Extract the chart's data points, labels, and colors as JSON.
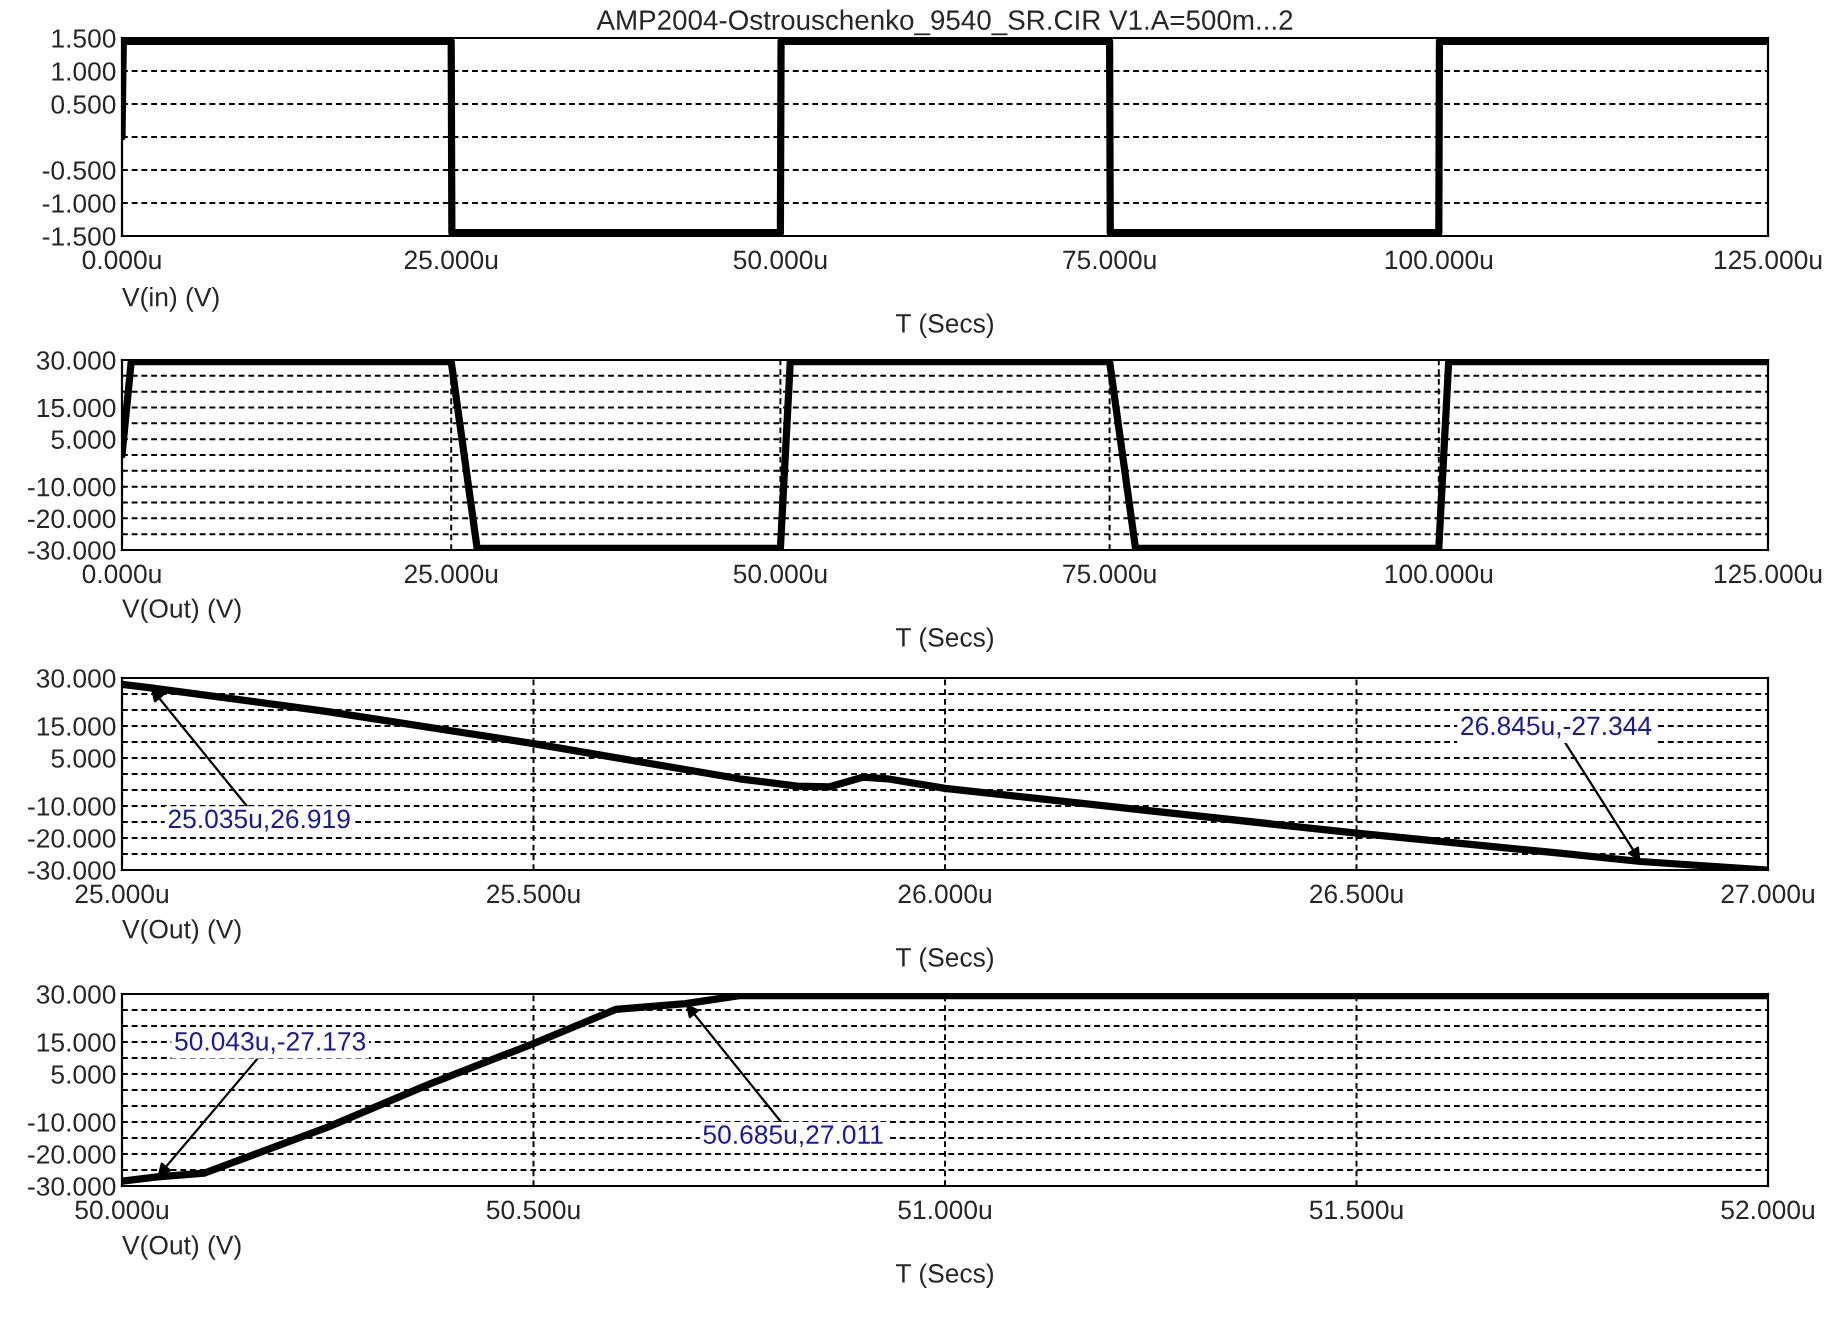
{
  "chart_data": [
    {
      "type": "line",
      "title": "AMP2004-Ostrouschenko_9540_SR.CIR V1.A=500m...2",
      "xlabel": "T (Secs)",
      "annotations": [
        "V(in) (V)"
      ],
      "grid": true,
      "series": [
        {
          "color": "#000000",
          "x": [
            0,
            0.1,
            25,
            25.05,
            50,
            50.05,
            75,
            75.05,
            100,
            100.05,
            125
          ],
          "values": [
            0,
            1.45,
            1.45,
            -1.45,
            -1.45,
            1.45,
            1.45,
            -1.45,
            -1.45,
            1.45,
            1.45
          ]
        }
      ],
      "xlim": [
        0,
        125
      ],
      "xticks": [
        {
          "value": 0,
          "label": "0.000u"
        },
        {
          "value": 25,
          "label": "25.000u"
        },
        {
          "value": 50,
          "label": "50.000u"
        },
        {
          "value": 75,
          "label": "75.000u"
        },
        {
          "value": 100,
          "label": "100.000u"
        },
        {
          "value": 125,
          "label": "125.000u"
        }
      ],
      "ylim": [
        -1.5,
        1.5
      ],
      "yticks": [
        {
          "value": -1.5,
          "label": "-1.500"
        },
        {
          "value": -1,
          "label": "-1.000"
        },
        {
          "value": -0.5,
          "label": "-0.500"
        },
        {
          "value": 0,
          "label": null
        },
        {
          "value": 0.5,
          "label": "0.500"
        },
        {
          "value": 1,
          "label": "1.000"
        },
        {
          "value": 1.5,
          "label": "1.500"
        }
      ]
    },
    {
      "type": "line",
      "xlabel": "T (Secs)",
      "annotations": [
        "V(Out) (V)"
      ],
      "grid": true,
      "series": [
        {
          "color": "#000000",
          "x": [
            0,
            0.7,
            25,
            26.97,
            50,
            50.75,
            75,
            76.97,
            100,
            100.75,
            125
          ],
          "values": [
            0,
            29.5,
            29.5,
            -29.5,
            -29.5,
            29.5,
            29.5,
            -29.5,
            -29.5,
            29.5,
            29.5
          ]
        }
      ],
      "xlim": [
        0,
        125
      ],
      "xticks": [
        {
          "value": 0,
          "label": "0.000u"
        },
        {
          "value": 25,
          "label": "25.000u"
        },
        {
          "value": 50,
          "label": "50.000u"
        },
        {
          "value": 75,
          "label": "75.000u"
        },
        {
          "value": 100,
          "label": "100.000u"
        },
        {
          "value": 125,
          "label": "125.000u"
        }
      ],
      "ylim": [
        -30,
        30
      ],
      "yticks": [
        {
          "value": -30,
          "label": "-30.000"
        },
        {
          "value": -25,
          "label": null
        },
        {
          "value": -20,
          "label": "-20.000"
        },
        {
          "value": -15,
          "label": null
        },
        {
          "value": -10,
          "label": "-10.000"
        },
        {
          "value": -5,
          "label": null
        },
        {
          "value": 0,
          "label": null
        },
        {
          "value": 5,
          "label": "5.000"
        },
        {
          "value": 10,
          "label": null
        },
        {
          "value": 15,
          "label": "15.000"
        },
        {
          "value": 20,
          "label": null
        },
        {
          "value": 25,
          "label": null
        },
        {
          "value": 30,
          "label": "30.000"
        }
      ]
    },
    {
      "type": "line",
      "xlabel": "T (Secs)",
      "grid": true,
      "series": [
        {
          "color": "#000000",
          "x": [
            25.0,
            25.035,
            25.25,
            25.5,
            25.75,
            25.82,
            25.86,
            25.9,
            25.93,
            26.0,
            26.25,
            26.5,
            26.75,
            26.845,
            27.0
          ],
          "values": [
            28,
            26.919,
            19.5,
            9.5,
            -1.5,
            -3.8,
            -4,
            -1,
            -1.5,
            -4.5,
            -11.5,
            -18.5,
            -24.8,
            -27.344,
            -30
          ]
        }
      ],
      "xlim": [
        25,
        27
      ],
      "xticks": [
        {
          "value": 25,
          "label": "25.000u"
        },
        {
          "value": 25.5,
          "label": "25.500u"
        },
        {
          "value": 26,
          "label": "26.000u"
        },
        {
          "value": 26.5,
          "label": "26.500u"
        },
        {
          "value": 27,
          "label": "27.000u"
        }
      ],
      "ylim": [
        -30,
        30
      ],
      "yticks": [
        {
          "value": -30,
          "label": "-30.000"
        },
        {
          "value": -25,
          "label": null
        },
        {
          "value": -20,
          "label": "-20.000"
        },
        {
          "value": -15,
          "label": null
        },
        {
          "value": -10,
          "label": "-10.000"
        },
        {
          "value": -5,
          "label": null
        },
        {
          "value": 0,
          "label": null
        },
        {
          "value": 5,
          "label": "5.000"
        },
        {
          "value": 10,
          "label": null
        },
        {
          "value": 15,
          "label": "15.000"
        },
        {
          "value": 20,
          "label": null
        },
        {
          "value": 25,
          "label": null
        },
        {
          "value": 30,
          "label": "30.000"
        }
      ],
      "annotations": [
        "V(Out) (V)",
        {
          "text": "25.035u,26.919",
          "x": 25.035,
          "y": 26.919
        },
        {
          "text": "26.845u,-27.344",
          "x": 26.845,
          "y": -27.344
        }
      ]
    },
    {
      "type": "line",
      "xlabel": "T (Secs)",
      "grid": true,
      "series": [
        {
          "color": "#000000",
          "x": [
            50.0,
            50.043,
            50.1,
            50.25,
            50.375,
            50.5,
            50.6,
            50.685,
            50.75,
            52.0
          ],
          "values": [
            -28.5,
            -27.173,
            -26,
            -11.6,
            2,
            14.5,
            25.2,
            27.011,
            29.5,
            29.5
          ]
        }
      ],
      "xlim": [
        50,
        52
      ],
      "xticks": [
        {
          "value": 50,
          "label": "50.000u"
        },
        {
          "value": 50.5,
          "label": "50.500u"
        },
        {
          "value": 51,
          "label": "51.000u"
        },
        {
          "value": 51.5,
          "label": "51.500u"
        },
        {
          "value": 52,
          "label": "52.000u"
        }
      ],
      "ylim": [
        -30,
        30
      ],
      "yticks": [
        {
          "value": -30,
          "label": "-30.000"
        },
        {
          "value": -25,
          "label": null
        },
        {
          "value": -20,
          "label": "-20.000"
        },
        {
          "value": -15,
          "label": null
        },
        {
          "value": -10,
          "label": "-10.000"
        },
        {
          "value": -5,
          "label": null
        },
        {
          "value": 0,
          "label": null
        },
        {
          "value": 5,
          "label": "5.000"
        },
        {
          "value": 10,
          "label": null
        },
        {
          "value": 15,
          "label": "15.000"
        },
        {
          "value": 20,
          "label": null
        },
        {
          "value": 25,
          "label": null
        },
        {
          "value": 30,
          "label": "30.000"
        }
      ],
      "annotations": [
        "V(Out) (V)",
        {
          "text": "50.043u,-27.173",
          "x": 50.043,
          "y": -27.173
        },
        {
          "text": "50.685u,27.011",
          "x": 50.685,
          "y": 27.011
        }
      ]
    }
  ]
}
